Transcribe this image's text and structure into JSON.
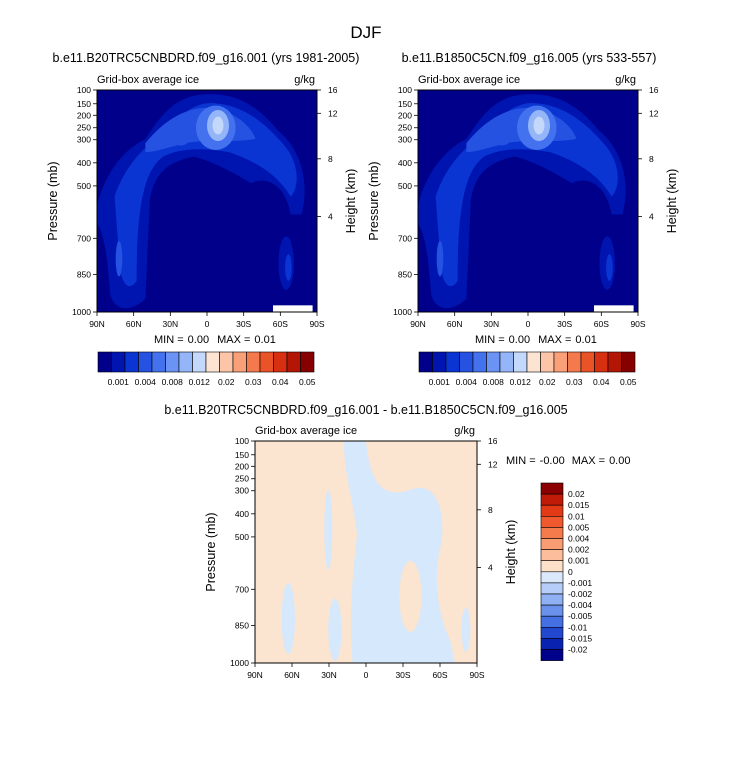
{
  "page": {
    "title": "DJF"
  },
  "chart_data": [
    {
      "type": "heatmap",
      "title": "b.e11.B20TRC5CNBDRD.f09_g16.001 (yrs 1981-2005)",
      "subtitle_left": "Grid-box average ice",
      "subtitle_right": "g/kg",
      "ylabel": "Pressure (mb)",
      "ylabel_right": "Height (km)",
      "x_ticks": [
        "90N",
        "60N",
        "30N",
        "0",
        "30S",
        "60S",
        "90S"
      ],
      "y_ticks": [
        "100",
        "150",
        "200",
        "250",
        "300",
        "400",
        "500",
        "700",
        "850",
        "1000"
      ],
      "y_ticks_right": [
        "16",
        "12",
        "8",
        "4"
      ],
      "min_label": "MIN =",
      "min_value": "0.00",
      "max_label": "MAX =",
      "max_value": "0.01",
      "colorbar_labels": [
        "0.001",
        "0.004",
        "0.008",
        "0.012",
        "0.02",
        "0.03",
        "0.04",
        "0.05"
      ],
      "colorbar_colors": [
        "#00008b",
        "#0015b0",
        "#0a35d2",
        "#2652e2",
        "#4472ee",
        "#6a93f4",
        "#94b5f8",
        "#c4d8fb",
        "#fde4d2",
        "#fcc5a8",
        "#f9a078",
        "#f47a4e",
        "#ea5227",
        "#d63010",
        "#b41605",
        "#870000"
      ]
    },
    {
      "type": "heatmap",
      "title": "b.e11.B1850C5CN.f09_g16.005 (yrs 533-557)",
      "subtitle_left": "Grid-box average ice",
      "subtitle_right": "g/kg",
      "ylabel": "Pressure (mb)",
      "ylabel_right": "Height (km)",
      "x_ticks": [
        "90N",
        "60N",
        "30N",
        "0",
        "30S",
        "60S",
        "90S"
      ],
      "y_ticks": [
        "100",
        "150",
        "200",
        "250",
        "300",
        "400",
        "500",
        "700",
        "850",
        "1000"
      ],
      "y_ticks_right": [
        "16",
        "12",
        "8",
        "4"
      ],
      "min_label": "MIN =",
      "min_value": "0.00",
      "max_label": "MAX =",
      "max_value": "0.01",
      "colorbar_labels": [
        "0.001",
        "0.004",
        "0.008",
        "0.012",
        "0.02",
        "0.03",
        "0.04",
        "0.05"
      ]
    },
    {
      "type": "heatmap",
      "title": "b.e11.B20TRC5CNBDRD.f09_g16.001 - b.e11.B1850C5CN.f09_g16.005",
      "subtitle_left": "Grid-box average ice",
      "subtitle_right": "g/kg",
      "ylabel": "Pressure (mb)",
      "ylabel_right": "Height (km)",
      "x_ticks": [
        "90N",
        "60N",
        "30N",
        "0",
        "30S",
        "60S",
        "90S"
      ],
      "y_ticks": [
        "100",
        "150",
        "200",
        "250",
        "300",
        "400",
        "500",
        "700",
        "850",
        "1000"
      ],
      "y_ticks_right": [
        "16",
        "12",
        "8",
        "4"
      ],
      "min_label": "MIN =",
      "min_value": "-0.00",
      "max_label": "MAX =",
      "max_value": "0.00",
      "colorbar_labels": [
        "0.02",
        "0.015",
        "0.01",
        "0.005",
        "0.004",
        "0.002",
        "0.001",
        "0",
        "-0.001",
        "-0.002",
        "-0.004",
        "-0.005",
        "-0.01",
        "-0.015",
        "-0.02"
      ],
      "colorbar_colors": [
        "#8b0000",
        "#c01a08",
        "#e23a17",
        "#f0582e",
        "#f57a4c",
        "#f89c73",
        "#fbbd9c",
        "#fde0c8",
        "#dbe8fb",
        "#b5cdf8",
        "#8fb0f3",
        "#6a91ec",
        "#4470e3",
        "#2248d0",
        "#0a22b0",
        "#00008b"
      ],
      "positive_color": "#fbe4d0",
      "negative_color": "#d6e8fb"
    }
  ]
}
